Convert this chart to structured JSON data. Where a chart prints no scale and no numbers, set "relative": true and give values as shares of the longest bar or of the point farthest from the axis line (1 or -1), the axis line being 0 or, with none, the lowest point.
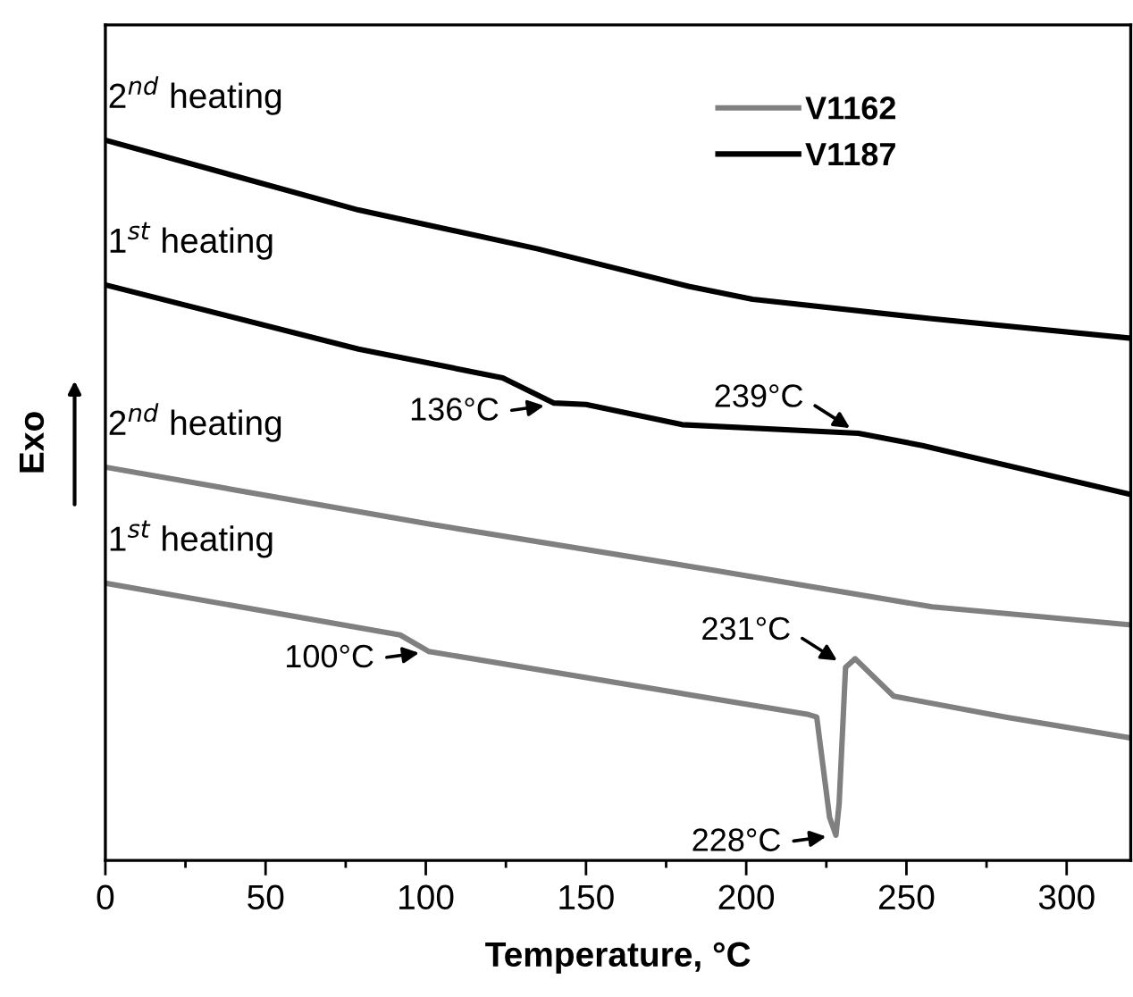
{
  "chart_data": {
    "type": "line",
    "relative": true,
    "xlabel": "Temperature, °C",
    "ylabel": "Exo",
    "xlim": [
      0,
      320
    ],
    "xticks": [
      0,
      50,
      100,
      150,
      200,
      250,
      300
    ],
    "legend": "top right",
    "grid": false,
    "marker": "none",
    "line_style": "solid",
    "series": [
      {
        "name": "V1162",
        "color": "#808080",
        "x": [
          0,
          92,
          101,
          219,
          222,
          226,
          228,
          229,
          231,
          234,
          246,
          281,
          320
        ],
        "values": [
          0.385,
          0.313,
          0.29,
          0.203,
          0.199,
          0.06,
          0.035,
          0.079,
          0.268,
          0.28,
          0.228,
          0.199,
          0.17
        ]
      },
      {
        "color": "#808080",
        "x": [
          0,
          101,
          191,
          258,
          320
        ],
        "values": [
          0.546,
          0.467,
          0.402,
          0.352,
          0.327
        ]
      },
      {
        "name": "V1187",
        "color": "#000000",
        "x": [
          0,
          79,
          124,
          140,
          150,
          180,
          235,
          255,
          320
        ],
        "values": [
          0.799,
          0.71,
          0.67,
          0.635,
          0.633,
          0.605,
          0.593,
          0.576,
          0.508
        ]
      },
      {
        "color": "#000000",
        "x": [
          0,
          79,
          135,
          182,
          202,
          258,
          320
        ],
        "values": [
          1.0,
          0.903,
          0.849,
          0.797,
          0.779,
          0.752,
          0.725
        ]
      }
    ],
    "annotations": [
      {
        "text": "1$^{st}$ heating",
        "x": 0,
        "y": 0.385
      },
      {
        "text": "2$^{nd}$ heating",
        "x": 0,
        "y": 0.546
      },
      {
        "text": "1$^{st}$ heating",
        "x": 0,
        "y": 0.799
      },
      {
        "text": "2$^{nd}$ heating",
        "x": 0,
        "y": 1.0
      },
      {
        "text": "100°C",
        "x": 101,
        "y": 0.29
      },
      {
        "text": "228°C",
        "x": 228,
        "y": 0.035
      },
      {
        "text": "231°C",
        "x": 231,
        "y": 0.27
      },
      {
        "text": "136°C",
        "x": 140,
        "y": 0.633
      },
      {
        "text": "239°C",
        "x": 235,
        "y": 0.593
      }
    ]
  }
}
